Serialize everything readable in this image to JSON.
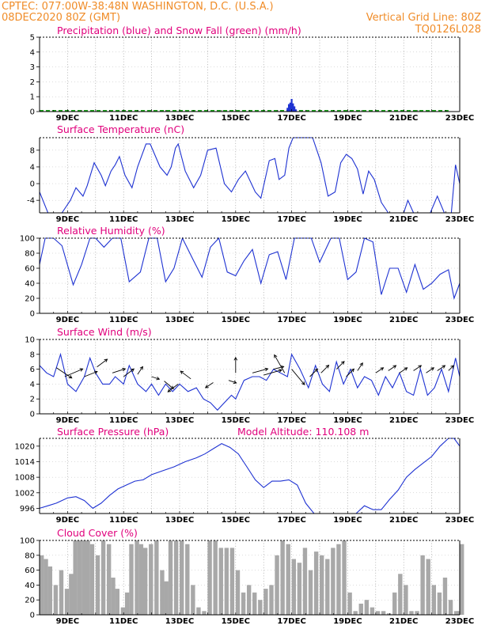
{
  "header": {
    "line1_left": "CPTEC:   077:00W-38:48N   WASHINGTON, D.C. (U.S.A.)",
    "line2_left": "08DEC2020 80Z (GMT)",
    "line2_right": "Vertical Grid Line: 80Z",
    "line3_right": "TQ0126L028"
  },
  "colors": {
    "header": "#f08c28",
    "title": "#e0007c",
    "line": "#1e32d2",
    "snow": "#1ea51e",
    "cloud_fill": "#a8a8a8",
    "wind_arrow": "#000000"
  },
  "x_ticks": [
    "9DEC",
    "11DEC",
    "13DEC",
    "15DEC",
    "17DEC",
    "19DEC",
    "21DEC",
    "23DEC"
  ],
  "chart_data": [
    {
      "id": "precip",
      "type": "bar",
      "title": "Precipitation (blue) and Snow Fall (green) (mm/h)",
      "unit": "mm/h",
      "ylim": [
        0,
        5
      ],
      "yticks": [
        "0",
        "1",
        "2",
        "3",
        "4",
        "5"
      ],
      "xlim": [
        8.0,
        23.0
      ],
      "grid": true,
      "series": [
        {
          "color": "#1e32d2",
          "x": [
            16.85,
            16.9,
            16.95,
            17.0,
            17.05,
            17.1,
            17.15
          ],
          "values": [
            0.25,
            0.5,
            0.6,
            0.85,
            0.55,
            0.35,
            0.15
          ]
        },
        {
          "color": "#1ea51e",
          "x_range": [
            8.0,
            22.6
          ],
          "values": [
            0.05
          ]
        }
      ]
    },
    {
      "id": "temperature",
      "type": "line",
      "title": "Surface Temperature (nC)",
      "unit": "nC",
      "ylim": [
        -7,
        11
      ],
      "yticks": [
        "-4",
        "0",
        "4",
        "8"
      ],
      "xlim": [
        8.0,
        23.0
      ],
      "grid": true,
      "x": [
        8.0,
        8.3,
        8.5,
        8.8,
        9.1,
        9.3,
        9.55,
        9.7,
        9.95,
        10.2,
        10.35,
        10.55,
        10.7,
        10.85,
        11.05,
        11.3,
        11.5,
        11.8,
        11.95,
        12.3,
        12.55,
        12.7,
        12.85,
        12.95,
        13.2,
        13.5,
        13.75,
        14.0,
        14.3,
        14.6,
        14.85,
        15.1,
        15.35,
        15.7,
        15.9,
        16.2,
        16.4,
        16.55,
        16.75,
        16.9,
        17.05,
        17.3,
        17.55,
        17.75,
        18.05,
        18.3,
        18.55,
        18.75,
        18.95,
        19.15,
        19.35,
        19.55,
        19.75,
        19.95,
        20.2,
        20.45,
        20.7,
        20.85,
        21.0,
        21.15,
        21.35,
        21.6,
        21.8,
        21.95,
        22.2,
        22.45,
        22.7,
        22.85,
        23.0
      ],
      "values": [
        -2.0,
        -7.0,
        -7.0,
        -7.0,
        -4.0,
        -1.0,
        -3.0,
        -0.5,
        5.0,
        2.0,
        -0.5,
        3.0,
        4.5,
        6.5,
        2.0,
        -1.0,
        4.0,
        9.5,
        9.5,
        4.0,
        2.0,
        4.0,
        8.5,
        9.5,
        3.0,
        -1.0,
        2.0,
        8.0,
        8.5,
        0.0,
        -2.0,
        1.0,
        3.0,
        -2.0,
        -3.5,
        5.5,
        6.0,
        1.0,
        2.0,
        8.5,
        11.0,
        11.0,
        11.0,
        11.0,
        5.0,
        -3.0,
        -2.0,
        5.0,
        7.0,
        6.0,
        3.5,
        -2.5,
        3.0,
        1.0,
        -4.5,
        -7.0,
        -7.0,
        -7.0,
        -7.0,
        -4.0,
        -7.0,
        -7.0,
        -7.0,
        -7.0,
        -3.0,
        -7.0,
        -7.0,
        4.5,
        0.0
      ]
    },
    {
      "id": "humidity",
      "type": "line",
      "title": "Relative Humidity (%)",
      "unit": "%",
      "ylim": [
        0,
        100
      ],
      "yticks": [
        "0",
        "20",
        "40",
        "60",
        "80",
        "100"
      ],
      "xlim": [
        8.0,
        23.0
      ],
      "grid": true,
      "x": [
        8.0,
        8.2,
        8.5,
        8.8,
        9.2,
        9.5,
        9.8,
        10.0,
        10.3,
        10.6,
        10.9,
        11.2,
        11.6,
        11.9,
        12.2,
        12.5,
        12.8,
        13.1,
        13.5,
        13.8,
        14.1,
        14.4,
        14.7,
        15.0,
        15.3,
        15.6,
        15.9,
        16.2,
        16.5,
        16.8,
        17.1,
        17.4,
        17.7,
        18.0,
        18.4,
        18.7,
        19.0,
        19.3,
        19.6,
        19.9,
        20.2,
        20.5,
        20.8,
        21.1,
        21.4,
        21.7,
        22.0,
        22.3,
        22.6,
        22.8,
        23.0
      ],
      "values": [
        65,
        100,
        100,
        90,
        38,
        65,
        100,
        100,
        88,
        100,
        100,
        42,
        55,
        100,
        100,
        42,
        60,
        100,
        70,
        48,
        88,
        100,
        55,
        50,
        70,
        85,
        40,
        78,
        82,
        45,
        100,
        100,
        100,
        68,
        100,
        100,
        45,
        55,
        100,
        95,
        25,
        60,
        60,
        28,
        65,
        32,
        40,
        52,
        58,
        20,
        40
      ]
    },
    {
      "id": "wind",
      "type": "line",
      "title": "Surface Wind (m/s)",
      "unit": "m/s",
      "ylim": [
        0,
        10
      ],
      "yticks": [
        "0",
        "2",
        "4",
        "6",
        "8",
        "10"
      ],
      "xlim": [
        8.0,
        23.0
      ],
      "grid": true,
      "x": [
        8.0,
        8.25,
        8.5,
        8.75,
        9.0,
        9.3,
        9.6,
        9.8,
        10.0,
        10.25,
        10.5,
        10.7,
        11.0,
        11.2,
        11.5,
        11.8,
        12.0,
        12.25,
        12.5,
        12.75,
        13.0,
        13.3,
        13.6,
        13.85,
        14.1,
        14.35,
        14.6,
        14.85,
        15.0,
        15.3,
        15.6,
        15.85,
        16.1,
        16.35,
        16.6,
        16.85,
        17.0,
        17.3,
        17.6,
        17.85,
        18.1,
        18.35,
        18.6,
        18.85,
        19.1,
        19.35,
        19.6,
        19.85,
        20.1,
        20.35,
        20.6,
        20.85,
        21.1,
        21.35,
        21.6,
        21.85,
        22.1,
        22.35,
        22.6,
        22.85,
        23.0
      ],
      "values": [
        6.5,
        5.5,
        5.0,
        8.0,
        4.0,
        3.0,
        5.0,
        7.5,
        5.5,
        4.0,
        4.0,
        5.0,
        4.0,
        6.5,
        4.0,
        3.0,
        4.0,
        2.5,
        4.0,
        3.0,
        4.0,
        3.0,
        3.5,
        2.0,
        1.5,
        0.5,
        1.5,
        2.5,
        2.0,
        4.5,
        5.0,
        5.0,
        4.5,
        6.0,
        5.5,
        5.0,
        8.0,
        6.0,
        3.5,
        6.5,
        4.0,
        3.0,
        7.0,
        4.0,
        6.0,
        3.5,
        5.0,
        4.5,
        2.5,
        5.0,
        3.5,
        5.5,
        3.0,
        2.5,
        6.0,
        2.5,
        3.5,
        6.0,
        3.0,
        7.5,
        5.0
      ],
      "arrows": {
        "x": [
          8.6,
          8.9,
          9.6,
          10.05,
          10.6,
          11.0,
          11.5,
          12.0,
          12.45,
          12.95,
          13.4,
          14.2,
          14.75,
          15.0,
          15.6,
          16.0,
          16.35,
          16.75,
          17.0,
          17.65,
          18.05,
          18.6,
          18.95,
          19.35,
          20.0,
          20.45,
          20.85,
          21.35,
          21.8,
          22.2,
          22.6
        ],
        "y": [
          6.2,
          5.0,
          5.0,
          6.3,
          5.5,
          5.0,
          5.3,
          5.0,
          4.4,
          4.0,
          4.7,
          4.2,
          4.5,
          5.5,
          5.5,
          5.2,
          6.0,
          5.5,
          6.0,
          5.0,
          5.5,
          6.0,
          5.0,
          5.8,
          5.5,
          5.8,
          5.5,
          5.8,
          5.5,
          5.8,
          5.8
        ],
        "u": [
          3.0,
          3.5,
          2.5,
          2.0,
          2.5,
          2.0,
          1.0,
          1.5,
          1.8,
          -2.0,
          -2.0,
          -1.5,
          1.5,
          0.0,
          3.0,
          3.5,
          2.0,
          -2.0,
          2.5,
          1.5,
          1.5,
          1.5,
          1.5,
          1.0,
          1.5,
          1.5,
          1.5,
          1.5,
          1.5,
          1.5,
          1.0
        ],
        "v": [
          -2.0,
          1.5,
          1.0,
          1.5,
          0.8,
          1.5,
          1.5,
          -0.5,
          -1.5,
          -1.5,
          1.5,
          -1.0,
          -0.5,
          3.0,
          0.8,
          1.0,
          0.5,
          3.5,
          -3.0,
          1.5,
          1.5,
          1.5,
          1.5,
          1.5,
          1.0,
          1.0,
          1.0,
          1.0,
          1.0,
          1.0,
          1.0
        ]
      }
    },
    {
      "id": "pressure",
      "type": "line",
      "title": "Surface Pressure (hPa)",
      "annotation": "Model Altitude: 110.108  m",
      "unit": "hPa",
      "ylim": [
        994,
        1023
      ],
      "yticks": [
        "996",
        "1002",
        "1008",
        "1014",
        "1020"
      ],
      "xlim": [
        8.0,
        23.0
      ],
      "grid": true,
      "x": [
        8.0,
        8.3,
        8.6,
        9.0,
        9.3,
        9.6,
        9.9,
        10.2,
        10.5,
        10.8,
        11.1,
        11.4,
        11.7,
        12.0,
        12.4,
        12.8,
        13.2,
        13.6,
        13.9,
        14.2,
        14.5,
        14.8,
        15.1,
        15.4,
        15.7,
        16.0,
        16.3,
        16.6,
        16.9,
        17.2,
        17.5,
        17.8,
        18.1,
        18.4,
        18.7,
        19.0,
        19.3,
        19.6,
        19.9,
        20.2,
        20.5,
        20.8,
        21.1,
        21.4,
        21.7,
        22.0,
        22.3,
        22.6,
        22.8,
        23.0
      ],
      "values": [
        996,
        997,
        998,
        1000,
        1000.5,
        999,
        996,
        998,
        1001,
        1003.5,
        1005,
        1006.5,
        1007,
        1009,
        1010.5,
        1012,
        1014,
        1015.5,
        1017,
        1019,
        1021,
        1019.5,
        1017,
        1012,
        1007,
        1004,
        1006.5,
        1006.5,
        1007,
        1005,
        998,
        994,
        994,
        994,
        994,
        994,
        994,
        997,
        995.5,
        995.5,
        999.5,
        1003,
        1008,
        1011,
        1013.5,
        1016,
        1020,
        1023,
        1023,
        1020
      ]
    },
    {
      "id": "cloud",
      "type": "area",
      "title": "Cloud Cover (%)",
      "unit": "%",
      "ylim": [
        0,
        100
      ],
      "yticks": [
        "0",
        "20",
        "40",
        "60",
        "80",
        "100"
      ],
      "xlim": [
        8.0,
        23.0
      ],
      "grid": true,
      "x": [
        8.0,
        8.15,
        8.3,
        8.5,
        8.7,
        8.9,
        9.05,
        9.2,
        9.35,
        9.5,
        9.65,
        9.8,
        10.0,
        10.2,
        10.4,
        10.55,
        10.7,
        10.9,
        11.05,
        11.2,
        11.4,
        11.55,
        11.7,
        11.9,
        12.1,
        12.3,
        12.45,
        12.6,
        12.8,
        13.0,
        13.2,
        13.4,
        13.6,
        13.8,
        14.0,
        14.2,
        14.4,
        14.6,
        14.8,
        15.0,
        15.2,
        15.4,
        15.6,
        15.8,
        16.0,
        16.2,
        16.4,
        16.6,
        16.8,
        17.0,
        17.2,
        17.4,
        17.6,
        17.8,
        18.0,
        18.2,
        18.4,
        18.6,
        18.8,
        19.0,
        19.2,
        19.4,
        19.6,
        19.8,
        20.0,
        20.2,
        20.4,
        20.6,
        20.8,
        21.0,
        21.2,
        21.4,
        21.6,
        21.8,
        22.0,
        22.2,
        22.4,
        22.6,
        22.8,
        22.9,
        23.0
      ],
      "values": [
        80,
        75,
        65,
        40,
        60,
        35,
        55,
        100,
        100,
        100,
        100,
        95,
        80,
        100,
        95,
        50,
        35,
        10,
        30,
        95,
        100,
        95,
        90,
        95,
        100,
        60,
        45,
        100,
        100,
        100,
        95,
        40,
        10,
        5,
        100,
        100,
        90,
        90,
        90,
        60,
        30,
        40,
        30,
        20,
        35,
        40,
        80,
        100,
        95,
        75,
        70,
        90,
        60,
        85,
        80,
        75,
        90,
        95,
        100,
        30,
        5,
        15,
        20,
        10,
        5,
        5,
        2,
        30,
        55,
        40,
        5,
        5,
        80,
        75,
        40,
        30,
        50,
        20,
        5,
        5,
        95
      ]
    }
  ]
}
